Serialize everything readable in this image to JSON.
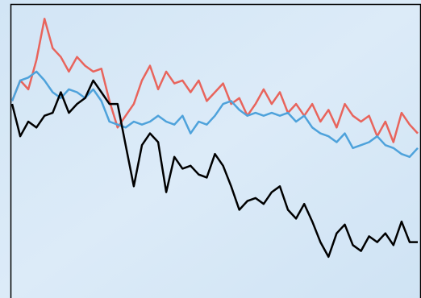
{
  "chart_data": {
    "type": "line",
    "ylim": [
      0,
      100
    ],
    "series": [
      {
        "color": "#e8645c",
        "values": [
          67,
          74,
          71,
          81,
          95,
          85,
          82,
          77,
          82,
          79,
          77,
          78,
          67,
          58,
          62,
          66,
          74,
          79,
          71,
          77,
          73,
          74,
          70,
          74,
          67,
          70,
          73,
          66,
          68,
          62,
          66,
          71,
          66,
          70,
          63,
          66,
          62,
          66,
          60,
          64,
          58,
          66,
          62,
          60,
          62,
          55,
          60,
          53,
          63,
          59,
          56
        ]
      },
      {
        "color": "#4ea2db",
        "values": [
          67,
          74,
          75,
          77,
          74,
          70,
          68,
          71,
          70,
          68,
          71,
          67,
          60,
          59,
          58,
          60,
          59,
          60,
          62,
          60,
          59,
          62,
          56,
          60,
          59,
          62,
          66,
          67,
          64,
          62,
          63,
          62,
          63,
          62,
          63,
          60,
          62,
          58,
          56,
          55,
          53,
          56,
          51,
          52,
          53,
          55,
          52,
          51,
          49,
          48,
          51
        ]
      },
      {
        "color": "#000000",
        "values": [
          66,
          55,
          60,
          58,
          62,
          63,
          70,
          63,
          66,
          68,
          74,
          70,
          66,
          66,
          52,
          38,
          52,
          56,
          53,
          36,
          48,
          44,
          45,
          42,
          41,
          49,
          45,
          38,
          30,
          33,
          34,
          32,
          36,
          38,
          30,
          27,
          32,
          26,
          19,
          14,
          22,
          25,
          18,
          16,
          21,
          19,
          22,
          18,
          26,
          19,
          19
        ]
      }
    ]
  }
}
